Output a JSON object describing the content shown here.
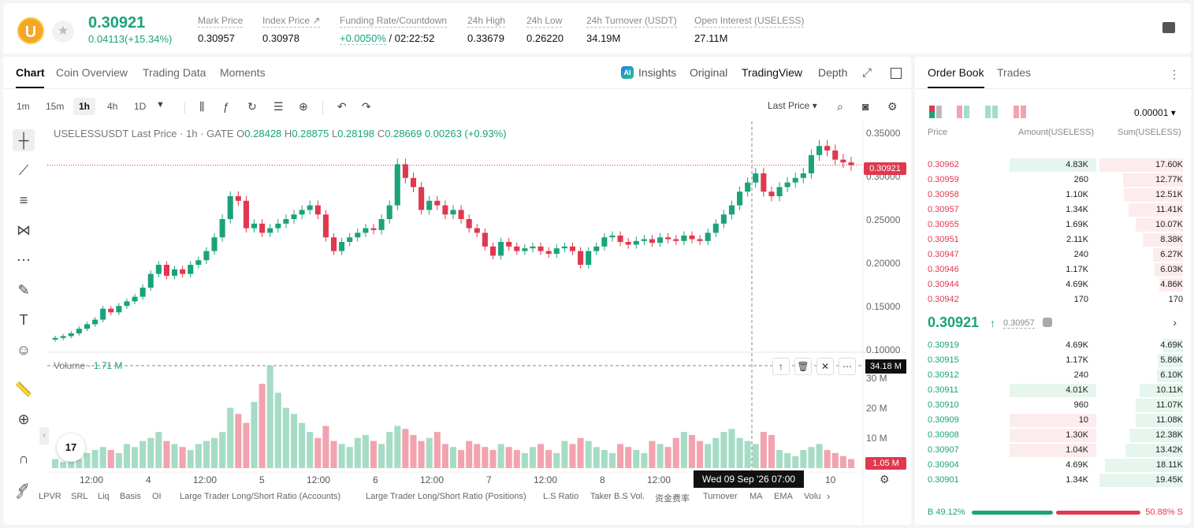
{
  "header": {
    "coin_letter": "U",
    "last_price": "0.30921",
    "change": "0.04113(+15.34%)",
    "stats": [
      {
        "label": "Mark Price",
        "value": "0.30957"
      },
      {
        "label": "Index Price ↗",
        "value": "0.30978"
      },
      {
        "label": "Funding Rate/Countdown",
        "value_green": "+0.0050%",
        "value": " / 02:22:52"
      },
      {
        "label": "24h High",
        "value": "0.33679"
      },
      {
        "label": "24h Low",
        "value": "0.26220"
      },
      {
        "label": "24h Turnover (USDT)",
        "value": "34.19M"
      },
      {
        "label": "Open Interest (USELESS)",
        "value": "27.11M"
      }
    ]
  },
  "chart_tabs": [
    "Chart",
    "Coin Overview",
    "Trading Data",
    "Moments"
  ],
  "view_tabs": {
    "insights": "Insights",
    "ai_badge": "AI",
    "original": "Original",
    "tradingview": "TradingView",
    "depth": "Depth"
  },
  "timeframes": [
    "1m",
    "15m",
    "1h",
    "4h",
    "1D"
  ],
  "active_timeframe": "1h",
  "price_source": "Last Price",
  "legend": {
    "title": "USELESSUSDT Last Price · 1h · GATE",
    "o_label": "O",
    "o": "0.28428",
    "h_label": "H",
    "h": "0.28875",
    "l_label": "L",
    "l": "0.28198",
    "c_label": "C",
    "c": "0.28669",
    "chg": "0.00263 (+0.93%)"
  },
  "volume_legend": {
    "label": "Volume",
    "value": "1.71 M"
  },
  "last_price_tag": "0.30921",
  "volume_tag": "34.18 M",
  "volume_last_tag": "1.05 M",
  "crosshair_date": "Wed 09 Sep '26   07:00",
  "tv_logo": "17",
  "indicators": [
    "LPVR",
    "SRL",
    "Liq",
    "Basis",
    "OI",
    "Large Trader Long/Short Ratio (Accounts)",
    "Large Trader Long/Short Ratio (Positions)",
    "L.S Ratio",
    "Taker B.S Vol.",
    "资金费率",
    "Turnover",
    "MA",
    "EMA",
    "Volu"
  ],
  "chart_data": {
    "type": "candlestick",
    "title": "USELESSUSDT Last Price · 1h · GATE",
    "price_axis": [
      "0.35000",
      "0.30000",
      "0.25000",
      "0.20000",
      "0.15000",
      "0.10000"
    ],
    "volume_axis": [
      "30 M",
      "20 M",
      "10 M"
    ],
    "x_ticks": [
      "12:00",
      "4",
      "12:00",
      "5",
      "12:00",
      "6",
      "12:00",
      "7",
      "12:00",
      "8",
      "12:00",
      "10"
    ],
    "ylim": [
      0.1,
      0.35
    ],
    "close_path": [
      0.12,
      0.122,
      0.125,
      0.13,
      0.135,
      0.14,
      0.152,
      0.148,
      0.155,
      0.16,
      0.165,
      0.175,
      0.19,
      0.2,
      0.188,
      0.195,
      0.19,
      0.2,
      0.205,
      0.215,
      0.23,
      0.25,
      0.275,
      0.27,
      0.24,
      0.245,
      0.235,
      0.24,
      0.245,
      0.25,
      0.255,
      0.26,
      0.265,
      0.255,
      0.23,
      0.215,
      0.225,
      0.23,
      0.235,
      0.24,
      0.238,
      0.25,
      0.265,
      0.31,
      0.295,
      0.285,
      0.26,
      0.27,
      0.265,
      0.255,
      0.26,
      0.25,
      0.24,
      0.235,
      0.22,
      0.21,
      0.225,
      0.22,
      0.215,
      0.218,
      0.22,
      0.215,
      0.212,
      0.218,
      0.22,
      0.215,
      0.2,
      0.215,
      0.22,
      0.23,
      0.232,
      0.225,
      0.222,
      0.226,
      0.228,
      0.224,
      0.23,
      0.228,
      0.226,
      0.232,
      0.228,
      0.226,
      0.235,
      0.245,
      0.255,
      0.265,
      0.28,
      0.29,
      0.3,
      0.28,
      0.275,
      0.285,
      0.29,
      0.295,
      0.3,
      0.32,
      0.33,
      0.325,
      0.315,
      0.312,
      0.309
    ],
    "volume": [
      3,
      2,
      4,
      3,
      5,
      6,
      7,
      6,
      5,
      8,
      7,
      9,
      10,
      12,
      9,
      8,
      7,
      6,
      8,
      9,
      10,
      12,
      20,
      18,
      15,
      22,
      28,
      34,
      25,
      20,
      18,
      15,
      12,
      10,
      14,
      9,
      8,
      7,
      10,
      11,
      9,
      8,
      12,
      14,
      13,
      11,
      9,
      10,
      12,
      8,
      7,
      6,
      9,
      8,
      7,
      6,
      8,
      7,
      6,
      5,
      7,
      8,
      6,
      5,
      9,
      8,
      10,
      9,
      7,
      6,
      5,
      8,
      7,
      6,
      5,
      9,
      8,
      7,
      10,
      12,
      11,
      9,
      8,
      10,
      12,
      13,
      10,
      9,
      8,
      12,
      11,
      6,
      5,
      4,
      6,
      7,
      8,
      6,
      5,
      4,
      3
    ]
  },
  "order_book": {
    "tabs": [
      "Order Book",
      "Trades"
    ],
    "precision": "0.00001 ▾",
    "headers": [
      "Price",
      "Amount(USELESS)",
      "Sum(USELESS)"
    ],
    "asks": [
      {
        "price": "0.30962",
        "amount": "4.83K",
        "sum": "17.60K",
        "sum_pct": 100,
        "amt_pct": 100
      },
      {
        "price": "0.30959",
        "amount": "260",
        "sum": "12.77K",
        "sum_pct": 72,
        "amt_pct": 0
      },
      {
        "price": "0.30958",
        "amount": "1.10K",
        "sum": "12.51K",
        "sum_pct": 71,
        "amt_pct": 0
      },
      {
        "price": "0.30957",
        "amount": "1.34K",
        "sum": "11.41K",
        "sum_pct": 65,
        "amt_pct": 0
      },
      {
        "price": "0.30955",
        "amount": "1.69K",
        "sum": "10.07K",
        "sum_pct": 57,
        "amt_pct": 0
      },
      {
        "price": "0.30951",
        "amount": "2.11K",
        "sum": "8.38K",
        "sum_pct": 48,
        "amt_pct": 0
      },
      {
        "price": "0.30947",
        "amount": "240",
        "sum": "6.27K",
        "sum_pct": 36,
        "amt_pct": 0
      },
      {
        "price": "0.30946",
        "amount": "1.17K",
        "sum": "6.03K",
        "sum_pct": 34,
        "amt_pct": 0
      },
      {
        "price": "0.30944",
        "amount": "4.69K",
        "sum": "4.86K",
        "sum_pct": 28,
        "amt_pct": 0
      },
      {
        "price": "0.30942",
        "amount": "170",
        "sum": "170",
        "sum_pct": 1,
        "amt_pct": 0
      }
    ],
    "mid_price": "0.30921",
    "mid_arrow": "↑",
    "mark": "0.30957",
    "bids": [
      {
        "price": "0.30919",
        "amount": "4.69K",
        "sum": "4.69K",
        "sum_pct": 24,
        "amt_pct": 0,
        "amt_red": false
      },
      {
        "price": "0.30915",
        "amount": "1.17K",
        "sum": "5.86K",
        "sum_pct": 30,
        "amt_pct": 0,
        "amt_red": false
      },
      {
        "price": "0.30912",
        "amount": "240",
        "sum": "6.10K",
        "sum_pct": 31,
        "amt_pct": 0,
        "amt_red": false
      },
      {
        "price": "0.30911",
        "amount": "4.01K",
        "sum": "10.11K",
        "sum_pct": 52,
        "amt_pct": 100,
        "amt_red": false
      },
      {
        "price": "0.30910",
        "amount": "960",
        "sum": "11.07K",
        "sum_pct": 57,
        "amt_pct": 0,
        "amt_red": false
      },
      {
        "price": "0.30909",
        "amount": "10",
        "sum": "11.08K",
        "sum_pct": 57,
        "amt_pct": 100,
        "amt_red": true
      },
      {
        "price": "0.30908",
        "amount": "1.30K",
        "sum": "12.38K",
        "sum_pct": 64,
        "amt_pct": 100,
        "amt_red": true
      },
      {
        "price": "0.30907",
        "amount": "1.04K",
        "sum": "13.42K",
        "sum_pct": 69,
        "amt_pct": 100,
        "amt_red": true
      },
      {
        "price": "0.30904",
        "amount": "4.69K",
        "sum": "18.11K",
        "sum_pct": 93,
        "amt_pct": 0,
        "amt_red": false
      },
      {
        "price": "0.30901",
        "amount": "1.34K",
        "sum": "19.45K",
        "sum_pct": 100,
        "amt_pct": 0,
        "amt_red": false
      }
    ],
    "buy_label": "B 49.12%",
    "sell_label": "50.88% S",
    "buy_pct": 49.12
  },
  "colors": {
    "up": "#1aa37a",
    "down": "#e0384e",
    "up_light": "#a6dcc6",
    "down_light": "#f2a3ae"
  }
}
